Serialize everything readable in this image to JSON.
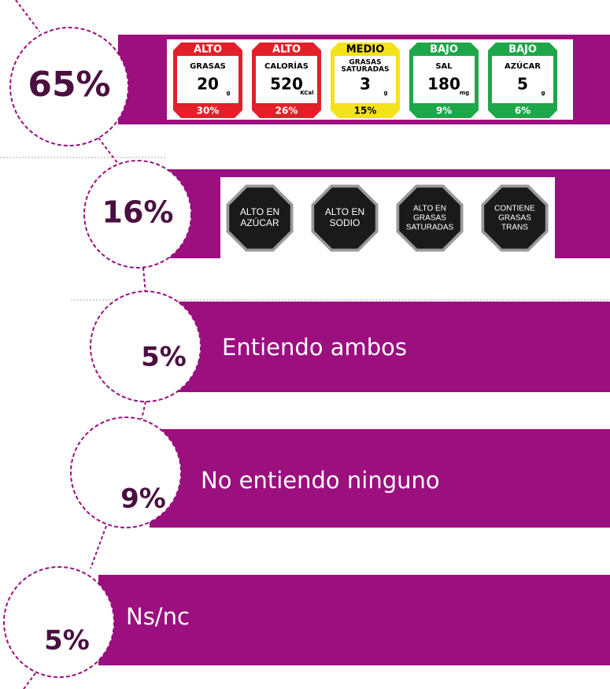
{
  "items": [
    {
      "percent": "65%",
      "labels": [
        {
          "level": "ALTO",
          "nutrient": [
            "GRASAS"
          ],
          "amount": "20",
          "unit": "g",
          "share": "30%",
          "color": "#e3202a"
        },
        {
          "level": "ALTO",
          "nutrient": [
            "CALORÍAS"
          ],
          "amount": "520",
          "unit": "KCal",
          "share": "26%",
          "color": "#e3202a"
        },
        {
          "level": "MEDIO",
          "nutrient": [
            "GRASAS",
            "SATURADAS"
          ],
          "amount": "3",
          "unit": "g",
          "share": "15%",
          "color": "#f4e21c"
        },
        {
          "level": "BAJO",
          "nutrient": [
            "SAL"
          ],
          "amount": "180",
          "unit": "mg",
          "share": "9%",
          "color": "#1ea64a"
        },
        {
          "level": "BAJO",
          "nutrient": [
            "AZÚCAR"
          ],
          "amount": "5",
          "unit": "g",
          "share": "6%",
          "color": "#1ea64a"
        }
      ]
    },
    {
      "percent": "16%",
      "seals": [
        {
          "lines": [
            "ALTO EN",
            "AZÚCAR"
          ]
        },
        {
          "lines": [
            "ALTO EN",
            "SODIO"
          ]
        },
        {
          "lines": [
            "ALTO EN",
            "GRASAS",
            "SATURADAS"
          ]
        },
        {
          "lines": [
            "CONTIENE",
            "GRASAS",
            "TRANS"
          ]
        }
      ]
    },
    {
      "percent": "5%",
      "text": "Entiendo ambos"
    },
    {
      "percent": "9%",
      "text": "No entiendo ninguno"
    },
    {
      "percent": "5%",
      "text": "Ns/nc"
    }
  ]
}
